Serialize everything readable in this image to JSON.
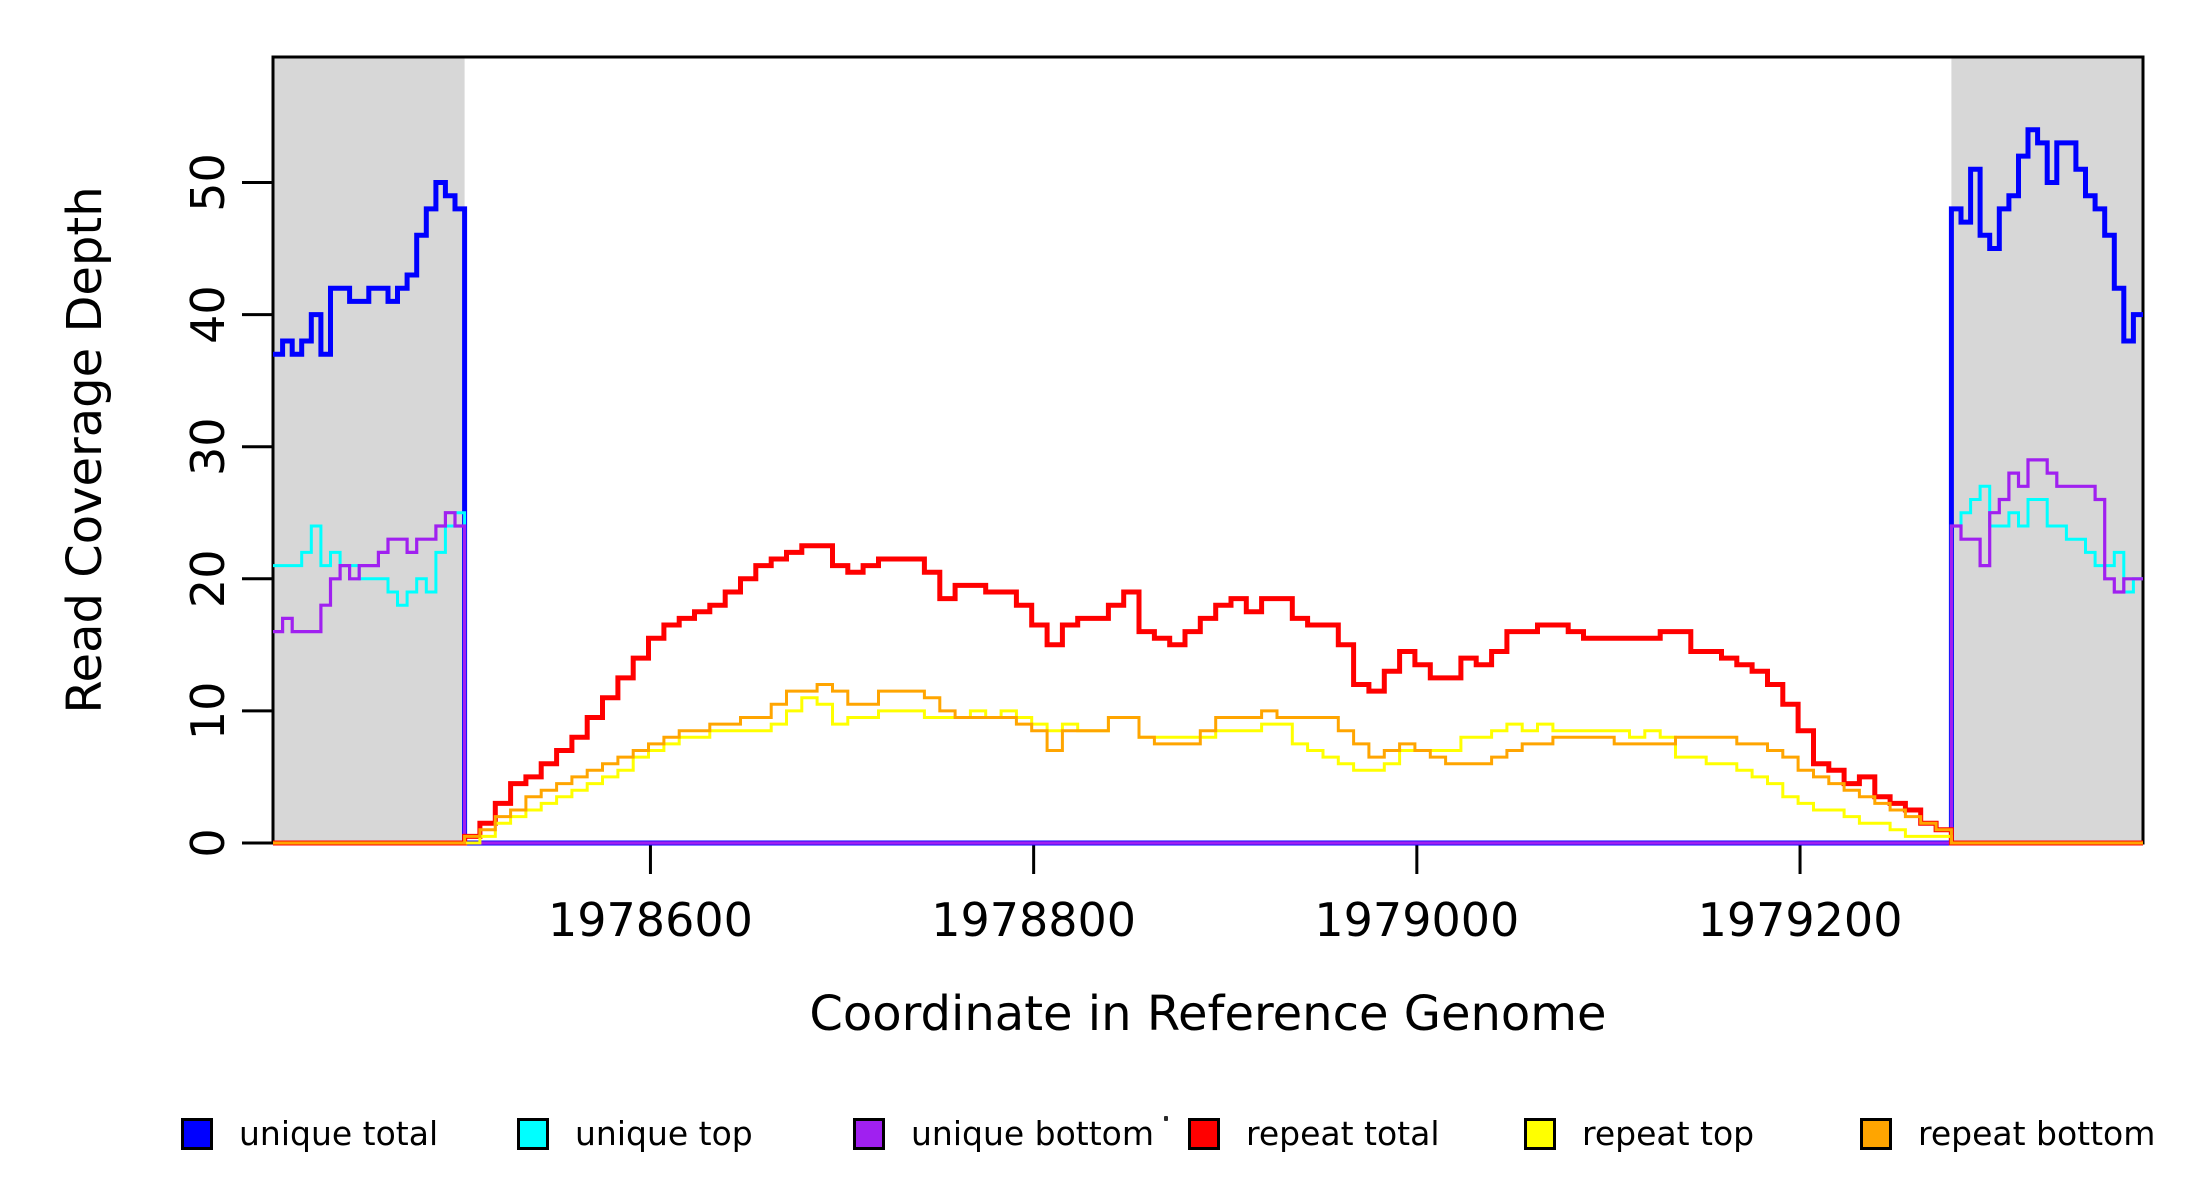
{
  "axes": {
    "ylabel": "Read Coverage Depth",
    "xlabel": "Coordinate in Reference Genome",
    "tick_color": "#000000",
    "box_color": "#000000"
  },
  "chart_data": {
    "type": "line",
    "subtype": "step-coverage",
    "xlabel": "Coordinate in Reference Genome",
    "ylabel": "Read Coverage Depth",
    "x_range": [
      1978403,
      1979379
    ],
    "y_range": [
      0,
      59.5
    ],
    "x_ticks": [
      1978600,
      1978800,
      1979000,
      1979200
    ],
    "y_ticks": [
      0,
      10,
      20,
      30,
      40,
      50
    ],
    "grid": false,
    "legend_position": "bottom",
    "shaded_regions": [
      {
        "x": [
          1978403,
          1978503
        ],
        "color": "#D7D7D7"
      },
      {
        "x": [
          1979279,
          1979379
        ],
        "color": "#D7D7D7"
      }
    ],
    "series": [
      {
        "name": "unique total",
        "color": "#0000FF",
        "width": 5,
        "segments": [
          {
            "x0": 1978403,
            "dx": 5,
            "values": [
              37,
              38,
              37,
              38,
              40,
              37,
              42,
              42,
              41,
              41,
              42,
              42,
              41,
              42,
              43,
              46,
              48,
              50,
              49,
              48
            ]
          },
          {
            "x0": 1978503,
            "dx": 776,
            "values": [
              0
            ]
          },
          {
            "x0": 1979279,
            "dx": 5,
            "values": [
              48,
              47,
              51,
              46,
              45,
              48,
              49,
              52,
              54,
              53,
              50,
              53,
              53,
              51,
              49,
              48,
              46,
              42,
              38,
              40
            ]
          }
        ]
      },
      {
        "name": "unique top",
        "color": "#00FFFF",
        "width": 3,
        "segments": [
          {
            "x0": 1978403,
            "dx": 5,
            "values": [
              21,
              21,
              21,
              22,
              24,
              21,
              22,
              21,
              21,
              20,
              20,
              20,
              19,
              18,
              19,
              20,
              19,
              22,
              24,
              25
            ]
          },
          {
            "x0": 1978503,
            "dx": 776,
            "values": [
              0
            ]
          },
          {
            "x0": 1979279,
            "dx": 5,
            "values": [
              24,
              25,
              26,
              27,
              24,
              24,
              25,
              24,
              26,
              26,
              24,
              24,
              23,
              23,
              22,
              21,
              21,
              22,
              19,
              20
            ]
          }
        ]
      },
      {
        "name": "unique bottom",
        "color": "#A020F0",
        "width": 3.2,
        "segments": [
          {
            "x0": 1978403,
            "dx": 5,
            "values": [
              16,
              17,
              16,
              16,
              16,
              18,
              20,
              21,
              20,
              21,
              21,
              22,
              23,
              23,
              22,
              23,
              23,
              24,
              25,
              24
            ]
          },
          {
            "x0": 1978503,
            "dx": 776,
            "values": [
              0
            ]
          },
          {
            "x0": 1979279,
            "dx": 5,
            "values": [
              24,
              23,
              23,
              21,
              25,
              26,
              28,
              27,
              29,
              29,
              28,
              27,
              27,
              27,
              27,
              26,
              20,
              19,
              20,
              20
            ]
          }
        ]
      },
      {
        "name": "repeat total",
        "color": "#FF0000",
        "width": 5,
        "segments": [
          {
            "x0": 1978403,
            "dx": 100,
            "values": [
              0
            ]
          },
          {
            "x0": 1978503,
            "dx": 8,
            "values": [
              0.5,
              1.5,
              3,
              4.5,
              5,
              6,
              7,
              8,
              9.5,
              11,
              12.5,
              14,
              15.5,
              16.5,
              17,
              17.5,
              18,
              19,
              20,
              21,
              21.5,
              22,
              22.5,
              22.5,
              21,
              20.5,
              21,
              21.5,
              21.5,
              21.5,
              20.5,
              18.5,
              19.5,
              19.5,
              19,
              19,
              18,
              16.5,
              15,
              16.5,
              17,
              17,
              18,
              19,
              16,
              15.5,
              15,
              16,
              17,
              18,
              18.5,
              17.5,
              18.5,
              18.5,
              17,
              16.5,
              16.5,
              15,
              12,
              11.5,
              13,
              14.5,
              13.5,
              12.5,
              12.5,
              14,
              13.5,
              14.5,
              16,
              16,
              16.5,
              16.5,
              16,
              15.5,
              15.5,
              15.5,
              15.5,
              15.5,
              16,
              16,
              14.5,
              14.5,
              14,
              13.5,
              13,
              12,
              10.5,
              8.5,
              6,
              5.5,
              4.5,
              5,
              3.5,
              3,
              2.5,
              1.5,
              1
            ]
          },
          {
            "x0": 1979279,
            "dx": 100,
            "values": [
              0
            ]
          }
        ]
      },
      {
        "name": "repeat top",
        "color": "#FFFF00",
        "width": 3,
        "segments": [
          {
            "x0": 1978403,
            "dx": 100,
            "values": [
              0
            ]
          },
          {
            "x0": 1978503,
            "dx": 8,
            "values": [
              0,
              0.5,
              1.5,
              2,
              2.5,
              3,
              3.5,
              4,
              4.5,
              5,
              5.5,
              6.5,
              7,
              7.5,
              8,
              8,
              8.5,
              8.5,
              8.5,
              8.5,
              9,
              10,
              11,
              10.5,
              9,
              9.5,
              9.5,
              10,
              10,
              10,
              9.5,
              9.5,
              9.5,
              10,
              9.5,
              10,
              9.5,
              9,
              8.5,
              9,
              8.5,
              8.5,
              9.5,
              9.5,
              8,
              8,
              8,
              8,
              8,
              8.5,
              8.5,
              8.5,
              9,
              9,
              7.5,
              7,
              6.5,
              6,
              5.5,
              5.5,
              6,
              7,
              7,
              7,
              7,
              8,
              8,
              8.5,
              9,
              8.5,
              9,
              8.5,
              8.5,
              8.5,
              8.5,
              8.5,
              8,
              8.5,
              8,
              6.5,
              6.5,
              6,
              6,
              5.5,
              5,
              4.5,
              3.5,
              3,
              2.5,
              2.5,
              2,
              1.5,
              1.5,
              1,
              0.5,
              0.5,
              0.5
            ]
          },
          {
            "x0": 1979279,
            "dx": 100,
            "values": [
              0
            ]
          }
        ]
      },
      {
        "name": "repeat bottom",
        "color": "#FFA500",
        "width": 3,
        "segments": [
          {
            "x0": 1978403,
            "dx": 100,
            "values": [
              0
            ]
          },
          {
            "x0": 1978503,
            "dx": 8,
            "values": [
              0.5,
              1,
              2,
              2.5,
              3.5,
              4,
              4.5,
              5,
              5.5,
              6,
              6.5,
              7,
              7.5,
              8,
              8.5,
              8.5,
              9,
              9,
              9.5,
              9.5,
              10.5,
              11.5,
              11.5,
              12,
              11.5,
              10.5,
              10.5,
              11.5,
              11.5,
              11.5,
              11,
              10,
              9.5,
              9.5,
              9.5,
              9.5,
              9,
              8.5,
              7,
              8.5,
              8.5,
              8.5,
              9.5,
              9.5,
              8,
              7.5,
              7.5,
              7.5,
              8.5,
              9.5,
              9.5,
              9.5,
              10,
              9.5,
              9.5,
              9.5,
              9.5,
              8.5,
              7.5,
              6.5,
              7,
              7.5,
              7,
              6.5,
              6,
              6,
              6,
              6.5,
              7,
              7.5,
              7.5,
              8,
              8,
              8,
              8,
              7.5,
              7.5,
              7.5,
              7.5,
              8,
              8,
              8,
              8,
              7.5,
              7.5,
              7,
              6.5,
              5.5,
              5,
              4.5,
              4,
              3.5,
              3,
              2.5,
              2,
              1.5,
              1
            ]
          },
          {
            "x0": 1979279,
            "dx": 100,
            "values": [
              0
            ]
          }
        ]
      }
    ]
  }
}
